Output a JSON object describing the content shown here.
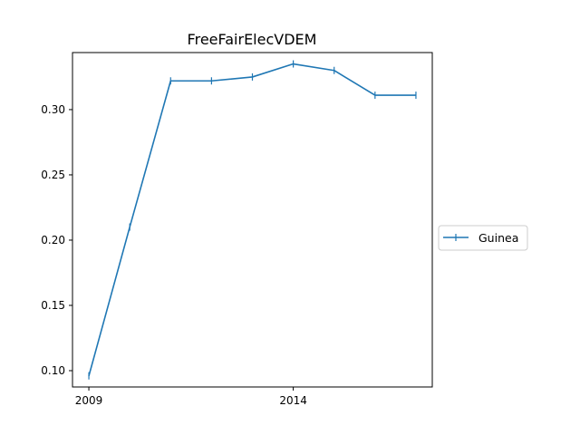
{
  "chart_data": {
    "type": "line",
    "title": "FreeFairElecVDEM",
    "xlabel": "",
    "ylabel": "",
    "x": [
      2009,
      2010,
      2011,
      2012,
      2013,
      2014,
      2015,
      2016,
      2017
    ],
    "x_tick_values": [
      2009,
      2014
    ],
    "x_tick_labels": [
      "2009",
      "2014"
    ],
    "xlim": [
      2008.6,
      2017.4
    ],
    "y_tick_values": [
      0.1,
      0.15,
      0.2,
      0.25,
      0.3
    ],
    "y_tick_labels": [
      "0.10",
      "0.15",
      "0.20",
      "0.25",
      "0.30"
    ],
    "ylim": [
      0.0875,
      0.3437
    ],
    "grid": false,
    "legend_position": "right",
    "series": [
      {
        "name": "Guinea",
        "color": "#1f77b4",
        "marker": "vertical-tick",
        "values": [
          0.096,
          0.21,
          0.322,
          0.322,
          0.325,
          0.335,
          0.33,
          0.311,
          0.311
        ]
      }
    ]
  }
}
